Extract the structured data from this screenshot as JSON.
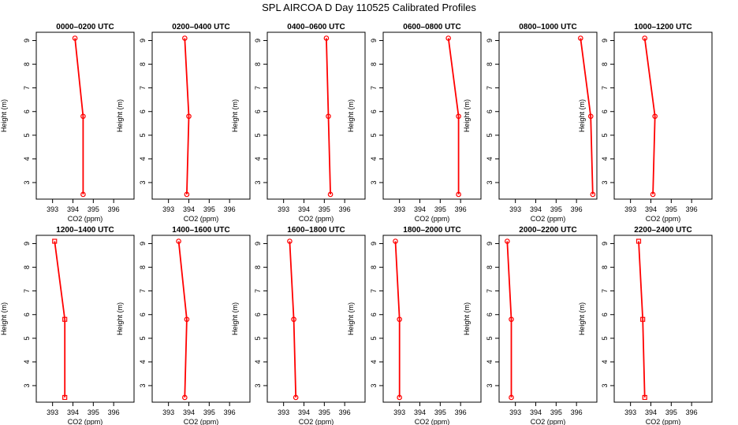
{
  "title": "SPL AIRCOA D  Day 110525  Calibrated Profiles",
  "colors": {
    "profile": "#ff0000",
    "axis": "#000000",
    "background": "#ffffff"
  },
  "chart_data": [
    {
      "type": "line",
      "title": "0000–0200 UTC",
      "xlabel": "CO2 (ppm)",
      "ylabel": "Height (m)",
      "xlim": [
        392.2,
        397
      ],
      "ylim": [
        2.3,
        9.35
      ],
      "xticks": [
        393,
        394,
        395,
        396
      ],
      "yticks": [
        3,
        4,
        5,
        6,
        7,
        8,
        9
      ],
      "marker": "circle",
      "grid": false,
      "x": [
        394.5,
        394.5,
        394.1
      ],
      "y": [
        2.5,
        5.8,
        9.1
      ]
    },
    {
      "type": "line",
      "title": "0200–0400 UTC",
      "xlabel": "CO2 (ppm)",
      "ylabel": "Height (m)",
      "xlim": [
        392.2,
        397
      ],
      "ylim": [
        2.3,
        9.35
      ],
      "xticks": [
        393,
        394,
        395,
        396
      ],
      "yticks": [
        3,
        4,
        5,
        6,
        7,
        8,
        9
      ],
      "marker": "circle",
      "grid": false,
      "x": [
        393.9,
        394.0,
        393.8
      ],
      "y": [
        2.5,
        5.8,
        9.1
      ]
    },
    {
      "type": "line",
      "title": "0400–0600 UTC",
      "xlabel": "CO2 (ppm)",
      "ylabel": "Height (m)",
      "xlim": [
        392.2,
        397
      ],
      "ylim": [
        2.3,
        9.35
      ],
      "xticks": [
        393,
        394,
        395,
        396
      ],
      "yticks": [
        3,
        4,
        5,
        6,
        7,
        8,
        9
      ],
      "marker": "circle",
      "grid": false,
      "x": [
        395.3,
        395.2,
        395.1
      ],
      "y": [
        2.5,
        5.8,
        9.1
      ]
    },
    {
      "type": "line",
      "title": "0600–0800 UTC",
      "xlabel": "CO2 (ppm)",
      "ylabel": "Height (m)",
      "xlim": [
        392.2,
        397
      ],
      "ylim": [
        2.3,
        9.35
      ],
      "xticks": [
        393,
        394,
        395,
        396
      ],
      "yticks": [
        3,
        4,
        5,
        6,
        7,
        8,
        9
      ],
      "marker": "circle",
      "grid": false,
      "x": [
        395.9,
        395.9,
        395.4
      ],
      "y": [
        2.5,
        5.8,
        9.1
      ]
    },
    {
      "type": "line",
      "title": "0800–1000 UTC",
      "xlabel": "CO2 (ppm)",
      "ylabel": "Height (m)",
      "xlim": [
        392.2,
        397
      ],
      "ylim": [
        2.3,
        9.35
      ],
      "xticks": [
        393,
        394,
        395,
        396
      ],
      "yticks": [
        3,
        4,
        5,
        6,
        7,
        8,
        9
      ],
      "marker": "circle",
      "grid": false,
      "x": [
        396.8,
        396.7,
        396.2
      ],
      "y": [
        2.5,
        5.8,
        9.1
      ]
    },
    {
      "type": "line",
      "title": "1000–1200 UTC",
      "xlabel": "CO2 (ppm)",
      "ylabel": "Height (m)",
      "xlim": [
        392.2,
        397
      ],
      "ylim": [
        2.3,
        9.35
      ],
      "xticks": [
        393,
        394,
        395,
        396
      ],
      "yticks": [
        3,
        4,
        5,
        6,
        7,
        8,
        9
      ],
      "marker": "circle",
      "grid": false,
      "x": [
        394.1,
        394.2,
        393.7
      ],
      "y": [
        2.5,
        5.8,
        9.1
      ]
    },
    {
      "type": "line",
      "title": "1200–1400 UTC",
      "xlabel": "CO2 (ppm)",
      "ylabel": "Height (m)",
      "xlim": [
        392.2,
        397
      ],
      "ylim": [
        2.3,
        9.35
      ],
      "xticks": [
        393,
        394,
        395,
        396
      ],
      "yticks": [
        3,
        4,
        5,
        6,
        7,
        8,
        9
      ],
      "marker": "square",
      "grid": false,
      "x": [
        393.6,
        393.6,
        393.1
      ],
      "y": [
        2.5,
        5.8,
        9.1
      ]
    },
    {
      "type": "line",
      "title": "1400–1600 UTC",
      "xlabel": "CO2 (ppm)",
      "ylabel": "Height (m)",
      "xlim": [
        392.2,
        397
      ],
      "ylim": [
        2.3,
        9.35
      ],
      "xticks": [
        393,
        394,
        395,
        396
      ],
      "yticks": [
        3,
        4,
        5,
        6,
        7,
        8,
        9
      ],
      "marker": "circle",
      "grid": false,
      "x": [
        393.8,
        393.9,
        393.5
      ],
      "y": [
        2.5,
        5.8,
        9.1
      ]
    },
    {
      "type": "line",
      "title": "1600–1800 UTC",
      "xlabel": "CO2 (ppm)",
      "ylabel": "Height (m)",
      "xlim": [
        392.2,
        397
      ],
      "ylim": [
        2.3,
        9.35
      ],
      "xticks": [
        393,
        394,
        395,
        396
      ],
      "yticks": [
        3,
        4,
        5,
        6,
        7,
        8,
        9
      ],
      "marker": "circle",
      "grid": false,
      "x": [
        393.6,
        393.5,
        393.3
      ],
      "y": [
        2.5,
        5.8,
        9.1
      ]
    },
    {
      "type": "line",
      "title": "1800–2000 UTC",
      "xlabel": "CO2 (ppm)",
      "ylabel": "Height (m)",
      "xlim": [
        392.2,
        397
      ],
      "ylim": [
        2.3,
        9.35
      ],
      "xticks": [
        393,
        394,
        395,
        396
      ],
      "yticks": [
        3,
        4,
        5,
        6,
        7,
        8,
        9
      ],
      "marker": "circle",
      "grid": false,
      "x": [
        393.0,
        393.0,
        392.8
      ],
      "y": [
        2.5,
        5.8,
        9.1
      ]
    },
    {
      "type": "line",
      "title": "2000–2200 UTC",
      "xlabel": "CO2 (ppm)",
      "ylabel": "Height (m)",
      "xlim": [
        392.2,
        397
      ],
      "ylim": [
        2.3,
        9.35
      ],
      "xticks": [
        393,
        394,
        395,
        396
      ],
      "yticks": [
        3,
        4,
        5,
        6,
        7,
        8,
        9
      ],
      "marker": "circle",
      "grid": false,
      "x": [
        392.8,
        392.8,
        392.6
      ],
      "y": [
        2.5,
        5.8,
        9.1
      ]
    },
    {
      "type": "line",
      "title": "2200–2400 UTC",
      "xlabel": "CO2 (ppm)",
      "ylabel": "Height (m)",
      "xlim": [
        392.2,
        397
      ],
      "ylim": [
        2.3,
        9.35
      ],
      "xticks": [
        393,
        394,
        395,
        396
      ],
      "yticks": [
        3,
        4,
        5,
        6,
        7,
        8,
        9
      ],
      "marker": "square",
      "grid": false,
      "x": [
        393.7,
        393.6,
        393.4
      ],
      "y": [
        2.5,
        5.8,
        9.1
      ]
    }
  ]
}
